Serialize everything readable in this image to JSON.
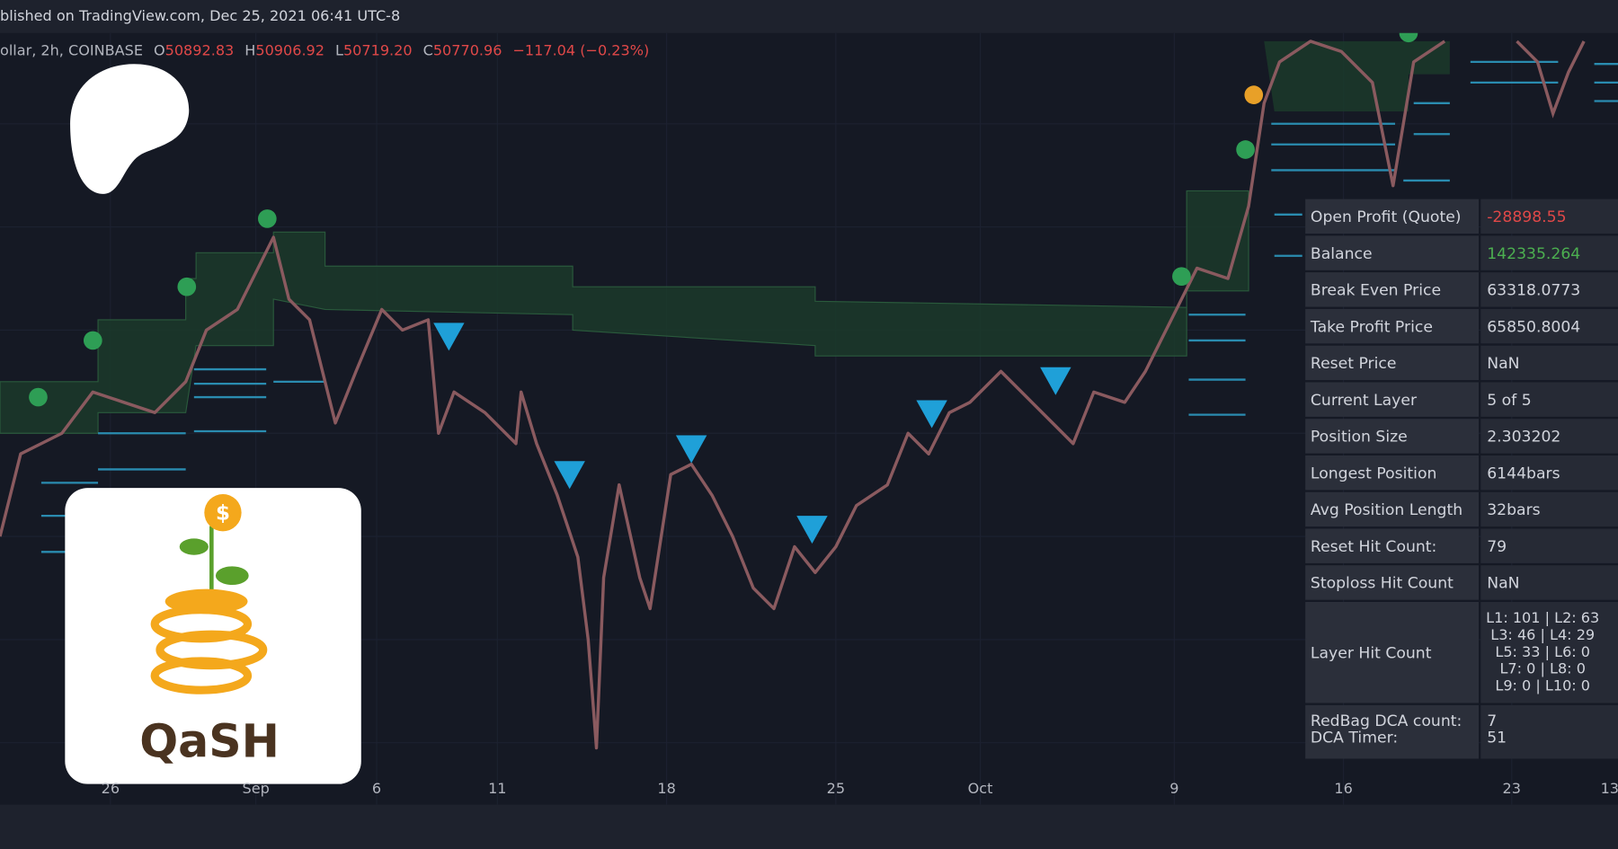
{
  "header": {
    "published": "blished on TradingView.com, Dec 25, 2021 06:41 UTC-8"
  },
  "legend": {
    "symbol": "ollar, 2h, COINBASE",
    "open_label": "O",
    "open": "50892.83",
    "high_label": "H",
    "high": "50906.92",
    "low_label": "L",
    "low": "50719.20",
    "close_label": "C",
    "close": "50770.96",
    "change": "−117.04 (−0.23%)"
  },
  "x_axis": {
    "labels": [
      "26",
      "Sep",
      "6",
      "11",
      "18",
      "25",
      "Oct",
      "9",
      "16",
      "23",
      "13"
    ]
  },
  "logo": {
    "text": "QaSH"
  },
  "stats": {
    "rows": [
      {
        "label": "Open Profit (Quote)",
        "value": "-28898.55"
      },
      {
        "label": "Balance",
        "value": "142335.264"
      },
      {
        "label": "Break Even Price",
        "value": "63318.0773"
      },
      {
        "label": "Take Profit Price",
        "value": "65850.8004"
      },
      {
        "label": "Reset Price",
        "value": "NaN"
      },
      {
        "label": "Current Layer",
        "value": "5 of 5"
      },
      {
        "label": "Position Size",
        "value": "2.303202"
      },
      {
        "label": "Longest Position",
        "value": "6144bars"
      },
      {
        "label": "Avg Position Length",
        "value": "32bars"
      },
      {
        "label": "Reset Hit Count:",
        "value": "79"
      },
      {
        "label": "Stoploss Hit Count",
        "value": "NaN"
      }
    ],
    "layer_hit": {
      "label": "Layer Hit Count",
      "lines": [
        "L1: 101  |  L2: 63",
        "L3: 46  |  L4: 29",
        "L5: 33  |  L6: 0",
        "L7: 0  |  L8: 0",
        "L9: 0  |  L10: 0"
      ]
    },
    "redbag": {
      "labels": [
        "RedBag DCA count:",
        "DCA Timer:"
      ],
      "values": [
        "7",
        "51"
      ]
    }
  }
}
